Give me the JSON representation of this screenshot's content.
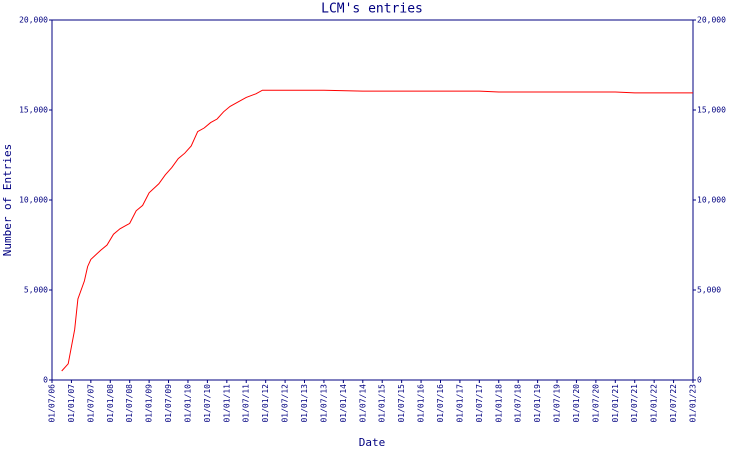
{
  "chart_data": {
    "type": "line",
    "title": "LCM's entries",
    "x_label": "Date",
    "y_label": "Number of Entries",
    "x": [
      "01/10/06",
      "01/12/06",
      "01/02/07",
      "01/03/07",
      "01/05/07",
      "01/06/07",
      "01/07/07",
      "01/10/07",
      "01/12/07",
      "01/02/08",
      "01/04/08",
      "01/07/08",
      "01/09/08",
      "01/11/08",
      "01/01/09",
      "01/04/09",
      "01/06/09",
      "01/08/09",
      "01/10/09",
      "01/12/09",
      "01/02/10",
      "01/04/10",
      "01/06/10",
      "01/08/10",
      "01/10/10",
      "01/12/10",
      "01/02/11",
      "01/04/11",
      "01/07/11",
      "01/10/11",
      "01/12/11",
      "01/07/13",
      "01/07/14",
      "01/07/17",
      "01/01/18",
      "01/01/21",
      "01/07/21",
      "01/01/23"
    ],
    "series": [
      {
        "name": "entries",
        "color": "#ff0000",
        "values": [
          500,
          900,
          2800,
          4500,
          5500,
          6300,
          6700,
          7200,
          7500,
          8100,
          8400,
          8700,
          9400,
          9700,
          10400,
          10900,
          11400,
          11800,
          12300,
          12600,
          13000,
          13800,
          14000,
          14300,
          14500,
          14900,
          15200,
          15400,
          15700,
          15900,
          16100,
          16100,
          16050,
          16050,
          16000,
          16000,
          15950,
          15950
        ]
      }
    ],
    "xlim": [
      "01/07/06",
      "01/01/23"
    ],
    "xticks": [
      "01/07/06",
      "01/01/07",
      "01/07/07",
      "01/01/08",
      "01/07/08",
      "01/01/09",
      "01/07/09",
      "01/01/10",
      "01/07/10",
      "01/01/11",
      "01/07/11",
      "01/01/12",
      "01/07/12",
      "01/01/13",
      "01/07/13",
      "01/01/14",
      "01/07/14",
      "01/01/15",
      "01/07/15",
      "01/01/16",
      "01/07/16",
      "01/01/17",
      "01/07/17",
      "01/01/18",
      "01/07/18",
      "01/01/19",
      "01/07/19",
      "01/01/20",
      "01/07/20",
      "01/01/21",
      "01/07/21",
      "01/01/22",
      "01/07/22",
      "01/01/23"
    ],
    "ylim": [
      0,
      20000
    ],
    "yticks": [
      0,
      {
        "value": 5000,
        "label": "5,000"
      },
      {
        "value": 10000,
        "label": "10,000"
      },
      {
        "value": 15000,
        "label": "15,000"
      },
      {
        "value": 20000,
        "label": "20,000"
      }
    ],
    "axis_color": "#000080"
  }
}
